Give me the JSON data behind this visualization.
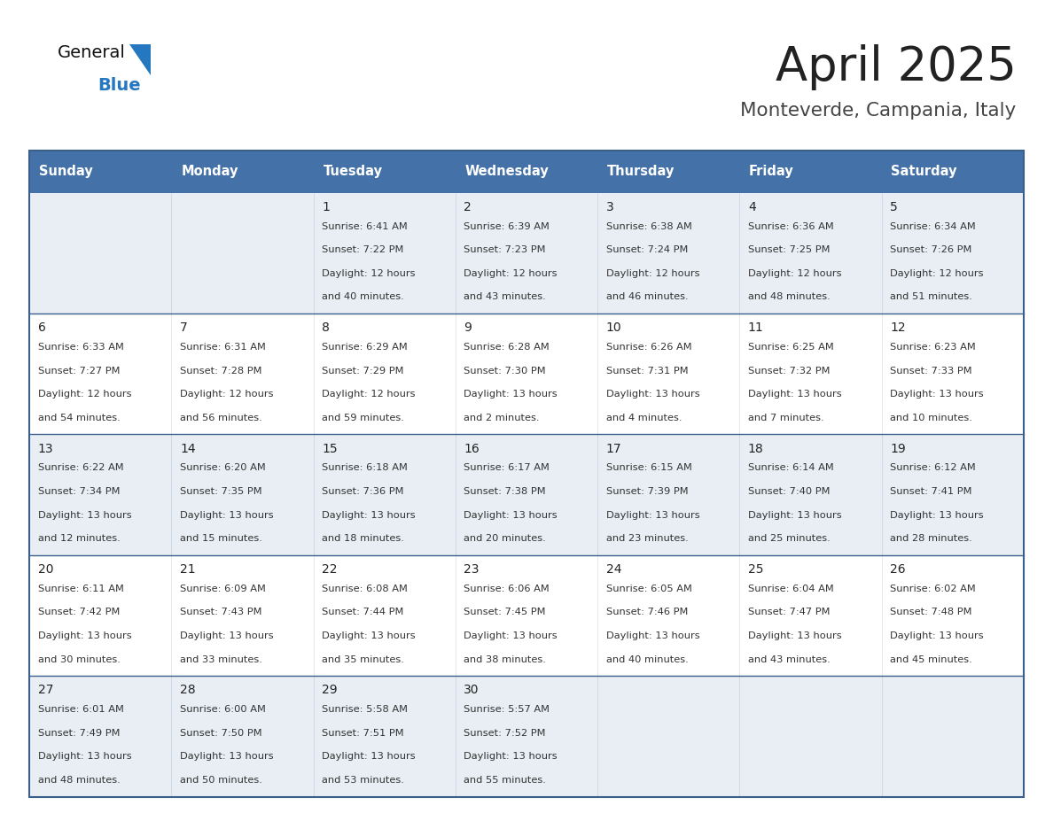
{
  "title": "April 2025",
  "subtitle": "Monteverde, Campania, Italy",
  "header_color": "#4472a8",
  "header_text_color": "#ffffff",
  "day_names": [
    "Sunday",
    "Monday",
    "Tuesday",
    "Wednesday",
    "Thursday",
    "Friday",
    "Saturday"
  ],
  "border_color": "#3a5f8a",
  "row_bg_colors": [
    "#e8eef4",
    "#ffffff",
    "#e8eef4",
    "#ffffff",
    "#e8eef4"
  ],
  "text_color": "#333333",
  "title_color": "#222222",
  "subtitle_color": "#444444",
  "logo_general_color": "#111111",
  "logo_blue_color": "#2577c0",
  "days": [
    {
      "day": null,
      "col": 0,
      "row": 0
    },
    {
      "day": null,
      "col": 1,
      "row": 0
    },
    {
      "day": 1,
      "col": 2,
      "row": 0,
      "sunrise": "6:41 AM",
      "sunset": "7:22 PM",
      "daylight": "12 hours and 40 minutes."
    },
    {
      "day": 2,
      "col": 3,
      "row": 0,
      "sunrise": "6:39 AM",
      "sunset": "7:23 PM",
      "daylight": "12 hours and 43 minutes."
    },
    {
      "day": 3,
      "col": 4,
      "row": 0,
      "sunrise": "6:38 AM",
      "sunset": "7:24 PM",
      "daylight": "12 hours and 46 minutes."
    },
    {
      "day": 4,
      "col": 5,
      "row": 0,
      "sunrise": "6:36 AM",
      "sunset": "7:25 PM",
      "daylight": "12 hours and 48 minutes."
    },
    {
      "day": 5,
      "col": 6,
      "row": 0,
      "sunrise": "6:34 AM",
      "sunset": "7:26 PM",
      "daylight": "12 hours and 51 minutes."
    },
    {
      "day": 6,
      "col": 0,
      "row": 1,
      "sunrise": "6:33 AM",
      "sunset": "7:27 PM",
      "daylight": "12 hours and 54 minutes."
    },
    {
      "day": 7,
      "col": 1,
      "row": 1,
      "sunrise": "6:31 AM",
      "sunset": "7:28 PM",
      "daylight": "12 hours and 56 minutes."
    },
    {
      "day": 8,
      "col": 2,
      "row": 1,
      "sunrise": "6:29 AM",
      "sunset": "7:29 PM",
      "daylight": "12 hours and 59 minutes."
    },
    {
      "day": 9,
      "col": 3,
      "row": 1,
      "sunrise": "6:28 AM",
      "sunset": "7:30 PM",
      "daylight": "13 hours and 2 minutes."
    },
    {
      "day": 10,
      "col": 4,
      "row": 1,
      "sunrise": "6:26 AM",
      "sunset": "7:31 PM",
      "daylight": "13 hours and 4 minutes."
    },
    {
      "day": 11,
      "col": 5,
      "row": 1,
      "sunrise": "6:25 AM",
      "sunset": "7:32 PM",
      "daylight": "13 hours and 7 minutes."
    },
    {
      "day": 12,
      "col": 6,
      "row": 1,
      "sunrise": "6:23 AM",
      "sunset": "7:33 PM",
      "daylight": "13 hours and 10 minutes."
    },
    {
      "day": 13,
      "col": 0,
      "row": 2,
      "sunrise": "6:22 AM",
      "sunset": "7:34 PM",
      "daylight": "13 hours and 12 minutes."
    },
    {
      "day": 14,
      "col": 1,
      "row": 2,
      "sunrise": "6:20 AM",
      "sunset": "7:35 PM",
      "daylight": "13 hours and 15 minutes."
    },
    {
      "day": 15,
      "col": 2,
      "row": 2,
      "sunrise": "6:18 AM",
      "sunset": "7:36 PM",
      "daylight": "13 hours and 18 minutes."
    },
    {
      "day": 16,
      "col": 3,
      "row": 2,
      "sunrise": "6:17 AM",
      "sunset": "7:38 PM",
      "daylight": "13 hours and 20 minutes."
    },
    {
      "day": 17,
      "col": 4,
      "row": 2,
      "sunrise": "6:15 AM",
      "sunset": "7:39 PM",
      "daylight": "13 hours and 23 minutes."
    },
    {
      "day": 18,
      "col": 5,
      "row": 2,
      "sunrise": "6:14 AM",
      "sunset": "7:40 PM",
      "daylight": "13 hours and 25 minutes."
    },
    {
      "day": 19,
      "col": 6,
      "row": 2,
      "sunrise": "6:12 AM",
      "sunset": "7:41 PM",
      "daylight": "13 hours and 28 minutes."
    },
    {
      "day": 20,
      "col": 0,
      "row": 3,
      "sunrise": "6:11 AM",
      "sunset": "7:42 PM",
      "daylight": "13 hours and 30 minutes."
    },
    {
      "day": 21,
      "col": 1,
      "row": 3,
      "sunrise": "6:09 AM",
      "sunset": "7:43 PM",
      "daylight": "13 hours and 33 minutes."
    },
    {
      "day": 22,
      "col": 2,
      "row": 3,
      "sunrise": "6:08 AM",
      "sunset": "7:44 PM",
      "daylight": "13 hours and 35 minutes."
    },
    {
      "day": 23,
      "col": 3,
      "row": 3,
      "sunrise": "6:06 AM",
      "sunset": "7:45 PM",
      "daylight": "13 hours and 38 minutes."
    },
    {
      "day": 24,
      "col": 4,
      "row": 3,
      "sunrise": "6:05 AM",
      "sunset": "7:46 PM",
      "daylight": "13 hours and 40 minutes."
    },
    {
      "day": 25,
      "col": 5,
      "row": 3,
      "sunrise": "6:04 AM",
      "sunset": "7:47 PM",
      "daylight": "13 hours and 43 minutes."
    },
    {
      "day": 26,
      "col": 6,
      "row": 3,
      "sunrise": "6:02 AM",
      "sunset": "7:48 PM",
      "daylight": "13 hours and 45 minutes."
    },
    {
      "day": 27,
      "col": 0,
      "row": 4,
      "sunrise": "6:01 AM",
      "sunset": "7:49 PM",
      "daylight": "13 hours and 48 minutes."
    },
    {
      "day": 28,
      "col": 1,
      "row": 4,
      "sunrise": "6:00 AM",
      "sunset": "7:50 PM",
      "daylight": "13 hours and 50 minutes."
    },
    {
      "day": 29,
      "col": 2,
      "row": 4,
      "sunrise": "5:58 AM",
      "sunset": "7:51 PM",
      "daylight": "13 hours and 53 minutes."
    },
    {
      "day": 30,
      "col": 3,
      "row": 4,
      "sunrise": "5:57 AM",
      "sunset": "7:52 PM",
      "daylight": "13 hours and 55 minutes."
    },
    {
      "day": null,
      "col": 4,
      "row": 4
    },
    {
      "day": null,
      "col": 5,
      "row": 4
    },
    {
      "day": null,
      "col": 6,
      "row": 4
    }
  ]
}
